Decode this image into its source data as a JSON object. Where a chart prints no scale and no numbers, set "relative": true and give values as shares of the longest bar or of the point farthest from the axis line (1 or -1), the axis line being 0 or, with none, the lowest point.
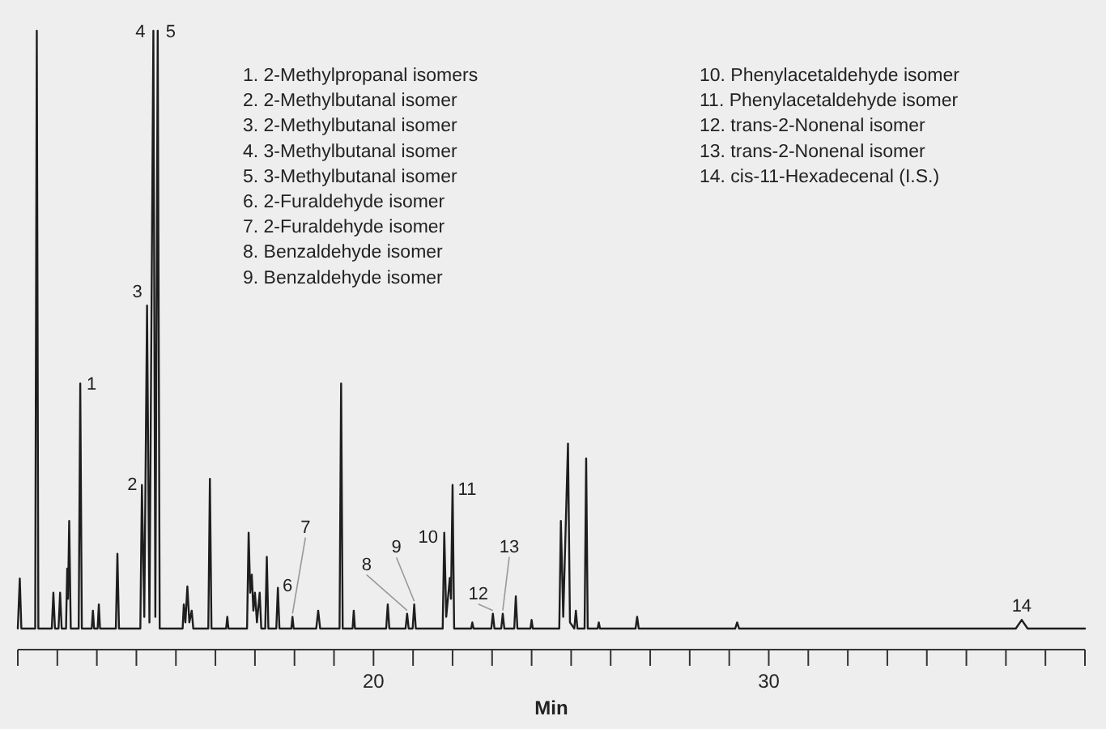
{
  "chart_data": {
    "type": "line",
    "relative": true,
    "xlabel": "Min",
    "xlim": [
      11,
      38
    ],
    "xticks": [
      {
        "value": 11,
        "label": null
      },
      {
        "value": 12,
        "label": null
      },
      {
        "value": 13,
        "label": null
      },
      {
        "value": 14,
        "label": null
      },
      {
        "value": 15,
        "label": null
      },
      {
        "value": 16,
        "label": null
      },
      {
        "value": 17,
        "label": null
      },
      {
        "value": 18,
        "label": null
      },
      {
        "value": 19,
        "label": null
      },
      20,
      {
        "value": 21,
        "label": null
      },
      {
        "value": 22,
        "label": null
      },
      {
        "value": 23,
        "label": null
      },
      {
        "value": 24,
        "label": null
      },
      {
        "value": 25,
        "label": null
      },
      {
        "value": 26,
        "label": null
      },
      {
        "value": 27,
        "label": null
      },
      {
        "value": 28,
        "label": null
      },
      {
        "value": 29,
        "label": null
      },
      30,
      {
        "value": 31,
        "label": null
      },
      {
        "value": 32,
        "label": null
      },
      {
        "value": 33,
        "label": null
      },
      {
        "value": 34,
        "label": null
      },
      {
        "value": 35,
        "label": null
      },
      {
        "value": 36,
        "label": null
      },
      {
        "value": 37,
        "label": null
      },
      {
        "value": 38,
        "label": null
      }
    ],
    "x": [
      11,
      11.05,
      11.09,
      11.44,
      11.48,
      11.52,
      11.86,
      11.9,
      11.94,
      12.03,
      12.07,
      12.11,
      12.22,
      12.25,
      12.27,
      12.3,
      12.34,
      12.54,
      12.58,
      12.62,
      12.87,
      12.9,
      12.93,
      13.02,
      13.05,
      13.08,
      13.48,
      13.52,
      13.56,
      14.1,
      14.14,
      14.2,
      14.27,
      14.33,
      14.43,
      14.48,
      14.54,
      14.59,
      15.17,
      15.2,
      15.24,
      15.29,
      15.34,
      15.4,
      15.44,
      15.82,
      15.86,
      15.9,
      16.27,
      16.3,
      16.33,
      16.8,
      16.84,
      16.88,
      16.92,
      16.96,
      17.0,
      17.05,
      17.12,
      17.16,
      17.26,
      17.3,
      17.34,
      17.54,
      17.58,
      17.62,
      17.92,
      17.95,
      17.98,
      18.55,
      18.6,
      18.65,
      19.14,
      19.18,
      19.22,
      19.47,
      19.5,
      19.53,
      20.32,
      20.36,
      20.4,
      20.81,
      20.85,
      20.89,
      20.99,
      21.03,
      21.07,
      21.75,
      21.79,
      21.84,
      21.93,
      21.96,
      22.0,
      22.04,
      22.47,
      22.5,
      22.53,
      22.98,
      23.02,
      23.06,
      23.23,
      23.27,
      23.31,
      23.56,
      23.6,
      23.64,
      23.97,
      24.0,
      24.03,
      24.7,
      24.74,
      24.8,
      24.92,
      24.97,
      25.08,
      25.12,
      25.16,
      25.34,
      25.38,
      25.42,
      25.67,
      25.7,
      25.73,
      26.63,
      26.67,
      26.71,
      29.15,
      29.2,
      29.25,
      36.25,
      36.4,
      36.55,
      38
    ],
    "series": [
      {
        "color": "#1e1e1e",
        "values": [
          0.034,
          0.115,
          0.034,
          0.034,
          1,
          0.034,
          0.034,
          0.092,
          0.034,
          0.034,
          0.092,
          0.034,
          0.034,
          0.131,
          0.082,
          0.208,
          0.034,
          0.034,
          0.43,
          0.034,
          0.034,
          0.063,
          0.034,
          0.034,
          0.073,
          0.034,
          0.034,
          0.155,
          0.034,
          0.034,
          0.266,
          0.053,
          0.556,
          0.044,
          1,
          0.053,
          1,
          0.034,
          0.034,
          0.073,
          0.044,
          0.102,
          0.044,
          0.063,
          0.034,
          0.034,
          0.276,
          0.034,
          0.034,
          0.053,
          0.034,
          0.034,
          0.189,
          0.092,
          0.121,
          0.063,
          0.092,
          0.044,
          0.092,
          0.034,
          0.034,
          0.15,
          0.034,
          0.034,
          0.1,
          0.034,
          0.034,
          0.053,
          0.034,
          0.034,
          0.063,
          0.034,
          0.034,
          0.43,
          0.034,
          0.034,
          0.063,
          0.034,
          0.034,
          0.073,
          0.034,
          0.034,
          0.058,
          0.034,
          0.034,
          0.073,
          0.034,
          0.034,
          0.189,
          0.053,
          0.116,
          0.082,
          0.266,
          0.034,
          0.034,
          0.044,
          0.034,
          0.034,
          0.058,
          0.034,
          0.034,
          0.058,
          0.034,
          0.034,
          0.086,
          0.034,
          0.034,
          0.048,
          0.034,
          0.034,
          0.208,
          0.053,
          0.333,
          0.044,
          0.034,
          0.063,
          0.034,
          0.034,
          0.309,
          0.034,
          0.034,
          0.044,
          0.034,
          0.034,
          0.053,
          0.034,
          0.034,
          0.044,
          0.034,
          0.034,
          0.048,
          0.034,
          0.034
        ]
      }
    ],
    "annotations": [
      "1. 2-Methylpropanal isomers",
      "2. 2-Methylbutanal isomer",
      "3. 2-Methylbutanal isomer",
      "4. 3-Methylbutanal isomer",
      "5. 3-Methylbutanal isomer",
      "6. 2-Furaldehyde isomer",
      "7. 2-Furaldehyde isomer",
      "8. Benzaldehyde isomer",
      "9. Benzaldehyde isomer",
      "10. Phenylacetaldehyde isomer",
      "11. Phenylacetaldehyde isomer",
      "12. trans-2-Nonenal isomer",
      "13. trans-2-Nonenal isomer",
      "14. cis-11-Hexadecenal (I.S.)",
      {
        "text": "1",
        "x": 12.58,
        "y": 0.43
      },
      {
        "text": "2",
        "x": 14.14,
        "y": 0.266
      },
      {
        "text": "3",
        "x": 14.27,
        "y": 0.556
      },
      {
        "text": "4",
        "x": 14.43,
        "y": 1
      },
      {
        "text": "5",
        "x": 14.54,
        "y": 1
      },
      {
        "text": "6",
        "x": 17.58,
        "y": 0.1
      },
      {
        "text": "7",
        "x": 17.95,
        "y": 0.053
      },
      {
        "text": "8",
        "x": 20.85,
        "y": 0.058
      },
      {
        "text": "9",
        "x": 21.03,
        "y": 0.073
      },
      {
        "text": "10",
        "x": 21.79,
        "y": 0.189
      },
      {
        "text": "11",
        "x": 22.0,
        "y": 0.266
      },
      {
        "text": "12",
        "x": 23.02,
        "y": 0.058
      },
      {
        "text": "13",
        "x": 23.27,
        "y": 0.058
      },
      {
        "text": "14",
        "x": 36.4,
        "y": 0.048
      }
    ]
  }
}
